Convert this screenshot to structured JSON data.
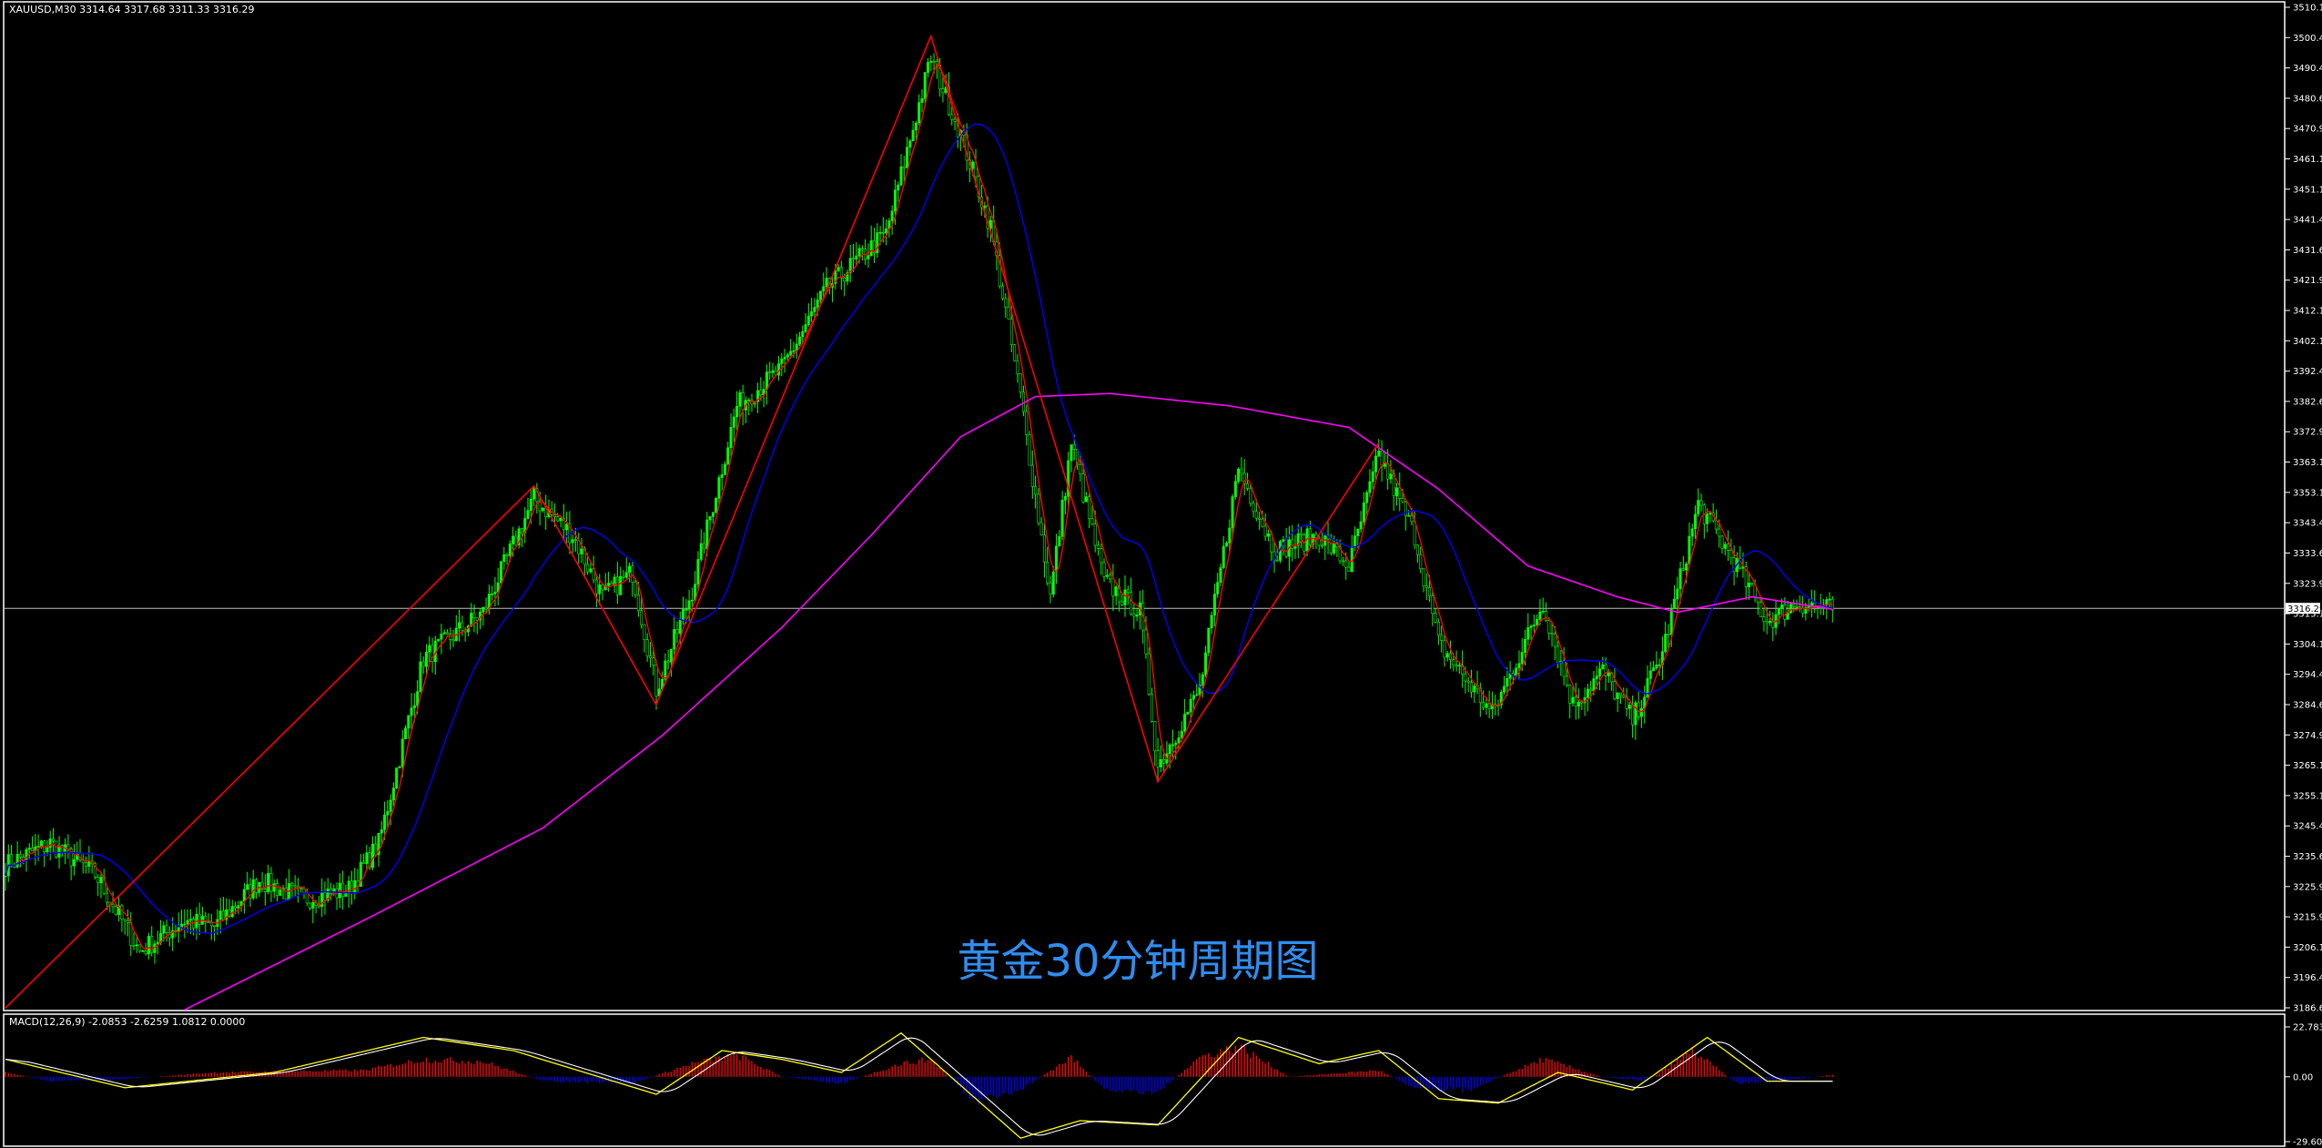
{
  "header": {
    "symbol_info": "XAUUSD,M30  3314.64 3317.68 3311.33 3316.29",
    "macd_info": "MACD(12,26,9) -2.0853 -2.6259 1.0812 0.0000"
  },
  "watermark": "黄金30分钟周期图",
  "colors": {
    "background": "#000000",
    "bull": "#00ff00",
    "bear": "#000000",
    "candle_outline": "#00ff00",
    "ma_fast": "#ff0000",
    "ma_mid": "#0000ff",
    "ma_slow": "#ff00ff",
    "zigzag": "#ff0000",
    "macd_pos": "#ff0000",
    "macd_neg": "#0000ff",
    "macd_line": "#ffff00",
    "signal_line": "#ffffff",
    "grid": "#ffffff",
    "watermark": "#2f8df0"
  },
  "chart_data": [
    {
      "type": "candlestick",
      "title": "XAUUSD,M30",
      "yaxis_ticks": [
        "3510.15",
        "3500.40",
        "3490.40",
        "3480.65",
        "3470.90",
        "3461.15",
        "3451.15",
        "3441.40",
        "3431.65",
        "3421.90",
        "3412.15",
        "3402.15",
        "3392.40",
        "3382.65",
        "3372.90",
        "3363.15",
        "3353.15",
        "3343.40",
        "3333.65",
        "3323.90",
        "3313.15",
        "3304.15",
        "3294.40",
        "3284.65",
        "3274.90",
        "3265.15",
        "3255.15",
        "3245.40",
        "3235.65",
        "3225.90",
        "3215.90",
        "3206.15",
        "3196.40",
        "3186.65"
      ],
      "ylim": [
        3186.65,
        3510.15
      ],
      "current_price": "3316.29",
      "current_price_value": 3316.29,
      "zigzag": [
        {
          "bar": 0,
          "price": 3186.6
        },
        {
          "bar": 177,
          "price": 3356
        },
        {
          "bar": 218,
          "price": 3285
        },
        {
          "bar": 310,
          "price": 3502
        },
        {
          "bar": 386,
          "price": 3260
        },
        {
          "bar": 460,
          "price": 3370
        }
      ],
      "path_keypoints": [
        {
          "bar": 0,
          "price": 3233
        },
        {
          "bar": 15,
          "price": 3240
        },
        {
          "bar": 30,
          "price": 3230
        },
        {
          "bar": 45,
          "price": 3205
        },
        {
          "bar": 60,
          "price": 3215
        },
        {
          "bar": 70,
          "price": 3213
        },
        {
          "bar": 85,
          "price": 3228
        },
        {
          "bar": 100,
          "price": 3222
        },
        {
          "bar": 115,
          "price": 3225
        },
        {
          "bar": 125,
          "price": 3240
        },
        {
          "bar": 140,
          "price": 3300
        },
        {
          "bar": 160,
          "price": 3315
        },
        {
          "bar": 177,
          "price": 3352
        },
        {
          "bar": 190,
          "price": 3340
        },
        {
          "bar": 200,
          "price": 3320
        },
        {
          "bar": 210,
          "price": 3328
        },
        {
          "bar": 218,
          "price": 3290
        },
        {
          "bar": 230,
          "price": 3322
        },
        {
          "bar": 245,
          "price": 3382
        },
        {
          "bar": 260,
          "price": 3394
        },
        {
          "bar": 275,
          "price": 3420
        },
        {
          "bar": 295,
          "price": 3438
        },
        {
          "bar": 310,
          "price": 3495
        },
        {
          "bar": 320,
          "price": 3470
        },
        {
          "bar": 330,
          "price": 3440
        },
        {
          "bar": 340,
          "price": 3385
        },
        {
          "bar": 350,
          "price": 3320
        },
        {
          "bar": 357,
          "price": 3370
        },
        {
          "bar": 368,
          "price": 3325
        },
        {
          "bar": 380,
          "price": 3315
        },
        {
          "bar": 386,
          "price": 3265
        },
        {
          "bar": 400,
          "price": 3290
        },
        {
          "bar": 413,
          "price": 3362
        },
        {
          "bar": 425,
          "price": 3335
        },
        {
          "bar": 440,
          "price": 3340
        },
        {
          "bar": 450,
          "price": 3330
        },
        {
          "bar": 460,
          "price": 3366
        },
        {
          "bar": 472,
          "price": 3340
        },
        {
          "bar": 480,
          "price": 3305
        },
        {
          "bar": 498,
          "price": 3282
        },
        {
          "bar": 515,
          "price": 3318
        },
        {
          "bar": 525,
          "price": 3285
        },
        {
          "bar": 535,
          "price": 3296
        },
        {
          "bar": 545,
          "price": 3280
        },
        {
          "bar": 555,
          "price": 3302
        },
        {
          "bar": 567,
          "price": 3350
        },
        {
          "bar": 580,
          "price": 3330
        },
        {
          "bar": 590,
          "price": 3312
        },
        {
          "bar": 600,
          "price": 3318
        },
        {
          "bar": 612,
          "price": 3316
        }
      ],
      "ma_slow_keypoints": [
        {
          "bar": 60,
          "price": 3186
        },
        {
          "bar": 120,
          "price": 3215
        },
        {
          "bar": 180,
          "price": 3245
        },
        {
          "bar": 220,
          "price": 3275
        },
        {
          "bar": 260,
          "price": 3310
        },
        {
          "bar": 290,
          "price": 3340
        },
        {
          "bar": 320,
          "price": 3372
        },
        {
          "bar": 345,
          "price": 3385
        },
        {
          "bar": 370,
          "price": 3386
        },
        {
          "bar": 410,
          "price": 3382
        },
        {
          "bar": 450,
          "price": 3375
        },
        {
          "bar": 480,
          "price": 3355
        },
        {
          "bar": 510,
          "price": 3330
        },
        {
          "bar": 540,
          "price": 3320
        },
        {
          "bar": 560,
          "price": 3315
        },
        {
          "bar": 585,
          "price": 3320
        },
        {
          "bar": 612,
          "price": 3316
        }
      ]
    },
    {
      "type": "histogram",
      "title": "MACD(12,26,9)",
      "yaxis_ticks": [
        "22.7833",
        "0.00",
        "-29.6040"
      ],
      "ylim": [
        -29.604,
        22.7833
      ],
      "histogram_keypoints": [
        {
          "bar": 0,
          "value": 2
        },
        {
          "bar": 15,
          "value": -2
        },
        {
          "bar": 40,
          "value": -1
        },
        {
          "bar": 70,
          "value": 2
        },
        {
          "bar": 120,
          "value": 3
        },
        {
          "bar": 140,
          "value": 8
        },
        {
          "bar": 160,
          "value": 7
        },
        {
          "bar": 180,
          "value": -2
        },
        {
          "bar": 210,
          "value": -3
        },
        {
          "bar": 230,
          "value": 6
        },
        {
          "bar": 245,
          "value": 10
        },
        {
          "bar": 260,
          "value": 0
        },
        {
          "bar": 280,
          "value": -3
        },
        {
          "bar": 300,
          "value": 6
        },
        {
          "bar": 310,
          "value": 8
        },
        {
          "bar": 325,
          "value": -12
        },
        {
          "bar": 340,
          "value": -6
        },
        {
          "bar": 357,
          "value": 9
        },
        {
          "bar": 368,
          "value": -6
        },
        {
          "bar": 386,
          "value": -7
        },
        {
          "bar": 400,
          "value": 9
        },
        {
          "bar": 413,
          "value": 14
        },
        {
          "bar": 430,
          "value": 0
        },
        {
          "bar": 460,
          "value": 3
        },
        {
          "bar": 472,
          "value": -5
        },
        {
          "bar": 490,
          "value": -6
        },
        {
          "bar": 515,
          "value": 8
        },
        {
          "bar": 535,
          "value": 0
        },
        {
          "bar": 550,
          "value": -2
        },
        {
          "bar": 565,
          "value": 12
        },
        {
          "bar": 580,
          "value": -3
        },
        {
          "bar": 595,
          "value": -2
        },
        {
          "bar": 612,
          "value": 1
        }
      ],
      "macd_keypoints": [
        {
          "bar": 0,
          "value": 8
        },
        {
          "bar": 40,
          "value": -5
        },
        {
          "bar": 90,
          "value": 2
        },
        {
          "bar": 140,
          "value": 18
        },
        {
          "bar": 170,
          "value": 12
        },
        {
          "bar": 218,
          "value": -8
        },
        {
          "bar": 240,
          "value": 12
        },
        {
          "bar": 260,
          "value": 8
        },
        {
          "bar": 280,
          "value": 2
        },
        {
          "bar": 300,
          "value": 20
        },
        {
          "bar": 325,
          "value": -10
        },
        {
          "bar": 340,
          "value": -28
        },
        {
          "bar": 360,
          "value": -20
        },
        {
          "bar": 386,
          "value": -22
        },
        {
          "bar": 413,
          "value": 18
        },
        {
          "bar": 440,
          "value": 6
        },
        {
          "bar": 460,
          "value": 12
        },
        {
          "bar": 480,
          "value": -10
        },
        {
          "bar": 500,
          "value": -12
        },
        {
          "bar": 520,
          "value": 2
        },
        {
          "bar": 545,
          "value": -6
        },
        {
          "bar": 570,
          "value": 18
        },
        {
          "bar": 590,
          "value": -2
        },
        {
          "bar": 612,
          "value": -2
        }
      ]
    }
  ]
}
